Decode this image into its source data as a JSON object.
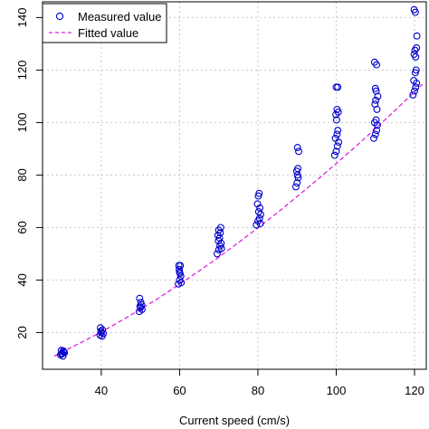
{
  "chart_data": {
    "type": "scatter",
    "xlabel": "Current speed (cm/s)",
    "ylabel": "",
    "xlim": [
      25,
      123
    ],
    "ylim": [
      6,
      146
    ],
    "x_ticks": [
      40,
      60,
      80,
      100,
      120
    ],
    "y_ticks": [
      20,
      40,
      60,
      80,
      100,
      120,
      140
    ],
    "grid": true,
    "legend_position": "top-left",
    "series": [
      {
        "name": "Measured value",
        "marker": "open-circle",
        "color": "#0000cc",
        "points": [
          [
            29.6,
            11.5
          ],
          [
            30.0,
            12.0
          ],
          [
            30.4,
            12.6
          ],
          [
            29.8,
            13.2
          ],
          [
            30.2,
            11.0
          ],
          [
            30.6,
            12.3
          ],
          [
            29.9,
            11.8
          ],
          [
            30.3,
            13.0
          ],
          [
            39.7,
            19.0
          ],
          [
            40.0,
            20.0
          ],
          [
            40.3,
            21.0
          ],
          [
            39.8,
            21.8
          ],
          [
            40.2,
            18.6
          ],
          [
            40.5,
            19.6
          ],
          [
            39.9,
            20.5
          ],
          [
            49.7,
            28.0
          ],
          [
            50.0,
            29.5
          ],
          [
            50.3,
            30.5
          ],
          [
            50.1,
            31.5
          ],
          [
            49.8,
            33.0
          ],
          [
            50.4,
            28.8
          ],
          [
            49.9,
            30.0
          ],
          [
            59.7,
            38.5
          ],
          [
            60.0,
            40.0
          ],
          [
            60.3,
            41.5
          ],
          [
            60.1,
            42.5
          ],
          [
            59.9,
            44.0
          ],
          [
            60.2,
            45.5
          ],
          [
            59.8,
            45.5
          ],
          [
            60.4,
            39.0
          ],
          [
            60.0,
            43.0
          ],
          [
            69.6,
            50.0
          ],
          [
            70.0,
            51.5
          ],
          [
            70.3,
            53.0
          ],
          [
            70.6,
            54.0
          ],
          [
            69.9,
            55.0
          ],
          [
            70.2,
            56.0
          ],
          [
            70.4,
            58.0
          ],
          [
            70.0,
            59.0
          ],
          [
            70.5,
            60.0
          ],
          [
            70.7,
            52.0
          ],
          [
            69.8,
            57.0
          ],
          [
            79.6,
            61.0
          ],
          [
            80.0,
            62.5
          ],
          [
            80.4,
            63.5
          ],
          [
            80.7,
            65.0
          ],
          [
            80.2,
            66.0
          ],
          [
            80.5,
            67.5
          ],
          [
            79.9,
            69.0
          ],
          [
            80.1,
            72.0
          ],
          [
            80.3,
            73.0
          ],
          [
            80.6,
            61.5
          ],
          [
            89.7,
            75.5
          ],
          [
            90.0,
            77.0
          ],
          [
            90.3,
            79.0
          ],
          [
            90.1,
            80.0
          ],
          [
            89.9,
            81.5
          ],
          [
            90.2,
            82.5
          ],
          [
            90.4,
            89.0
          ],
          [
            90.1,
            90.5
          ],
          [
            99.6,
            87.5
          ],
          [
            100.0,
            89.0
          ],
          [
            100.3,
            91.0
          ],
          [
            100.6,
            92.5
          ],
          [
            99.8,
            94.0
          ],
          [
            100.2,
            95.5
          ],
          [
            100.4,
            97.0
          ],
          [
            100.1,
            101.0
          ],
          [
            99.9,
            103.0
          ],
          [
            100.5,
            104.0
          ],
          [
            100.2,
            105.0
          ],
          [
            100.0,
            113.5
          ],
          [
            100.4,
            113.5
          ],
          [
            109.6,
            94.0
          ],
          [
            110.0,
            95.5
          ],
          [
            110.3,
            97.0
          ],
          [
            110.5,
            99.0
          ],
          [
            109.8,
            100.0
          ],
          [
            110.2,
            101.0
          ],
          [
            110.4,
            105.0
          ],
          [
            109.9,
            107.0
          ],
          [
            110.1,
            108.5
          ],
          [
            110.6,
            110.0
          ],
          [
            110.2,
            112.0
          ],
          [
            110.0,
            113.0
          ],
          [
            109.8,
            123.0
          ],
          [
            110.3,
            122.0
          ],
          [
            119.6,
            110.5
          ],
          [
            120.0,
            112.0
          ],
          [
            120.3,
            113.5
          ],
          [
            120.5,
            115.0
          ],
          [
            119.8,
            116.0
          ],
          [
            120.2,
            119.0
          ],
          [
            120.4,
            120.0
          ],
          [
            119.9,
            126.0
          ],
          [
            120.1,
            127.5
          ],
          [
            120.5,
            128.5
          ],
          [
            120.6,
            133.0
          ],
          [
            120.2,
            142.0
          ],
          [
            119.9,
            143.0
          ],
          [
            120.3,
            125.0
          ]
        ]
      },
      {
        "name": "Fitted value",
        "line_style": "dashed",
        "color": "#e020e0",
        "points": [
          [
            28,
            11.0
          ],
          [
            30,
            12.6
          ],
          [
            35,
            16.3
          ],
          [
            40,
            20.2
          ],
          [
            45,
            24.4
          ],
          [
            50,
            28.8
          ],
          [
            55,
            33.5
          ],
          [
            60,
            38.4
          ],
          [
            65,
            43.5
          ],
          [
            70,
            48.7
          ],
          [
            75,
            54.2
          ],
          [
            80,
            59.9
          ],
          [
            85,
            65.7
          ],
          [
            90,
            71.8
          ],
          [
            95,
            78.0
          ],
          [
            100,
            84.4
          ],
          [
            105,
            90.9
          ],
          [
            110,
            97.7
          ],
          [
            115,
            104.6
          ],
          [
            120,
            111.7
          ],
          [
            122,
            114.6
          ]
        ]
      }
    ]
  }
}
